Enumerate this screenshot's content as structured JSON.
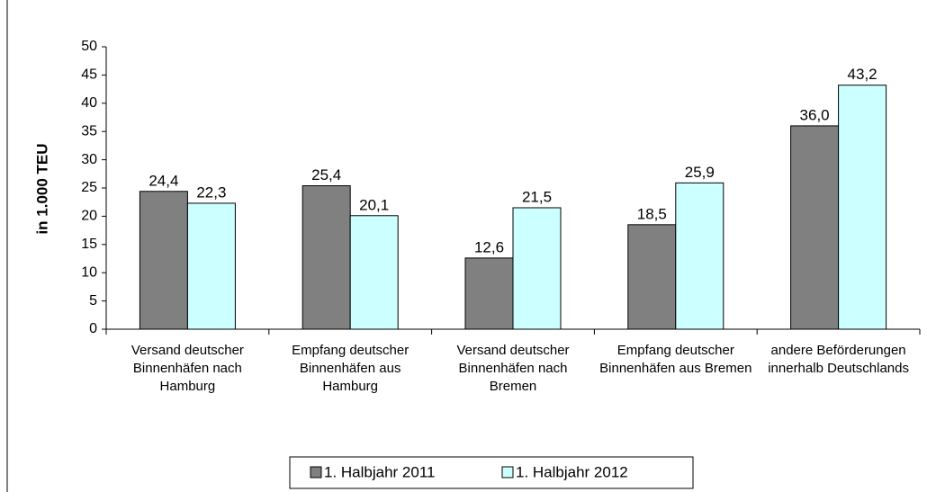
{
  "chart_data": {
    "type": "bar",
    "y_axis_label": "in 1.000 TEU",
    "categories": [
      "Versand deutscher Binnenhäfen nach Hamburg",
      "Empfang deutscher Binnenhäfen aus Hamburg",
      "Versand deutscher Binnenhäfen nach Bremen",
      "Empfang deutscher Binnenhäfen aus Bremen",
      "andere Beförderungen innerhalb Deutschlands"
    ],
    "series": [
      {
        "name": "1. Halbjahr 2011",
        "color": "#808080",
        "values": [
          24.4,
          25.4,
          12.6,
          18.5,
          36.0
        ],
        "value_labels": [
          "24,4",
          "25,4",
          "12,6",
          "18,5",
          "36,0"
        ]
      },
      {
        "name": "1. Halbjahr 2012",
        "color": "#ccffff",
        "values": [
          22.3,
          20.1,
          21.5,
          25.9,
          43.2
        ],
        "value_labels": [
          "22,3",
          "20,1",
          "21,5",
          "25,9",
          "43,2"
        ]
      }
    ],
    "ylim": [
      0,
      50
    ],
    "yticks": [
      0,
      5,
      10,
      15,
      20,
      25,
      30,
      35,
      40,
      45,
      50
    ],
    "legend": "bottom"
  }
}
